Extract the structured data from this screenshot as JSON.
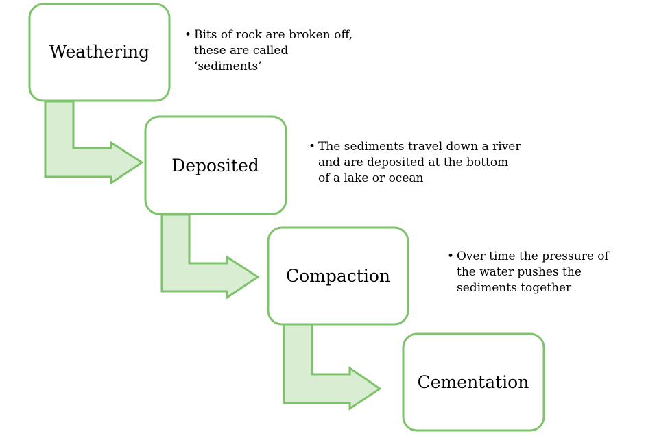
{
  "steps": [
    {
      "label": "Weathering",
      "description": "Bits of rock are broken off, these are called ‘sediments’"
    },
    {
      "label": "Deposited",
      "description": "The sediments travel down a river and are deposited at the bottom of a lake or ocean"
    },
    {
      "label": "Compaction",
      "description": "Over time the pressure of the water pushes the sediments together"
    },
    {
      "label": "Cementation",
      "description": ""
    }
  ],
  "colors": {
    "box_border": "#7cc36a",
    "arrow_fill": "#d9edd3",
    "text": "#000000"
  }
}
